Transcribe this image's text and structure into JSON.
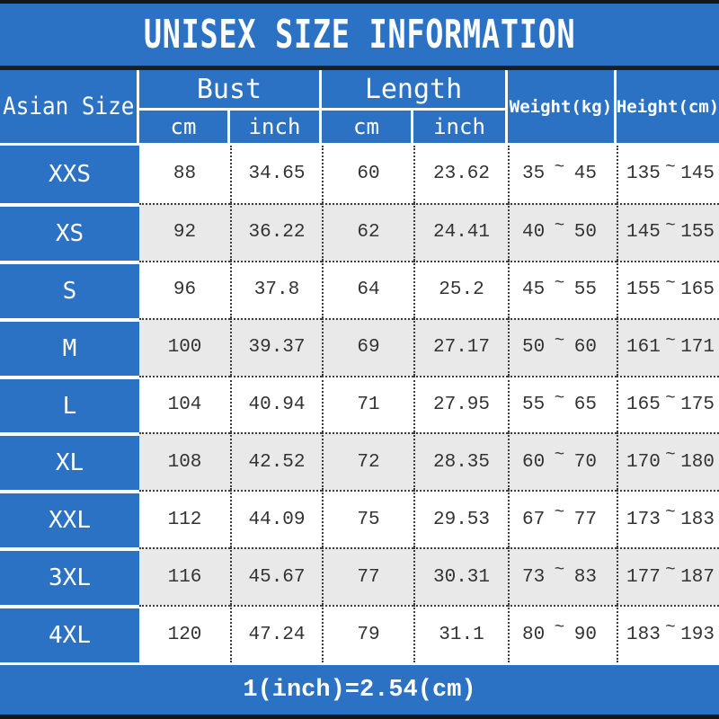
{
  "title": "UNISEX SIZE INFORMATION",
  "header": {
    "size_col": "Asian Size",
    "bust_group": "Bust",
    "length_group": "Length",
    "weight_col": "Weight(kg)",
    "height_col": "Height(cm)",
    "sub_cm": "cm",
    "sub_inch": "inch"
  },
  "labels": {
    "tilde": "~"
  },
  "footer": {
    "conversion_note": "1(inch)=2.54(cm)"
  },
  "colors": {
    "header_blue": "#2b72c4",
    "row_bg": "#ffffff",
    "row_alt_bg": "#e9e9e9",
    "text_dark": "#333333",
    "frame_black": "#161616",
    "header_text": "#ffffff"
  },
  "chart_data": {
    "type": "table",
    "title": "UNISEX SIZE INFORMATION",
    "column_groups": [
      "Asian Size",
      "Bust",
      "Length",
      "Weight(kg)",
      "Height(cm)"
    ],
    "columns": [
      "Asian Size",
      "Bust cm",
      "Bust inch",
      "Length cm",
      "Length inch",
      "Weight(kg)",
      "Height(cm)"
    ],
    "rows": [
      {
        "size": "XXS",
        "bust_cm": "88",
        "bust_inch": "34.65",
        "length_cm": "60",
        "length_inch": "23.62",
        "weight_min": "35",
        "weight_max": "45",
        "height_min": "135",
        "height_max": "145"
      },
      {
        "size": "XS",
        "bust_cm": "92",
        "bust_inch": "36.22",
        "length_cm": "62",
        "length_inch": "24.41",
        "weight_min": "40",
        "weight_max": "50",
        "height_min": "145",
        "height_max": "155"
      },
      {
        "size": "S",
        "bust_cm": "96",
        "bust_inch": "37.8",
        "length_cm": "64",
        "length_inch": "25.2",
        "weight_min": "45",
        "weight_max": "55",
        "height_min": "155",
        "height_max": "165"
      },
      {
        "size": "M",
        "bust_cm": "100",
        "bust_inch": "39.37",
        "length_cm": "69",
        "length_inch": "27.17",
        "weight_min": "50",
        "weight_max": "60",
        "height_min": "161",
        "height_max": "171"
      },
      {
        "size": "L",
        "bust_cm": "104",
        "bust_inch": "40.94",
        "length_cm": "71",
        "length_inch": "27.95",
        "weight_min": "55",
        "weight_max": "65",
        "height_min": "165",
        "height_max": "175"
      },
      {
        "size": "XL",
        "bust_cm": "108",
        "bust_inch": "42.52",
        "length_cm": "72",
        "length_inch": "28.35",
        "weight_min": "60",
        "weight_max": "70",
        "height_min": "170",
        "height_max": "180"
      },
      {
        "size": "XXL",
        "bust_cm": "112",
        "bust_inch": "44.09",
        "length_cm": "75",
        "length_inch": "29.53",
        "weight_min": "67",
        "weight_max": "77",
        "height_min": "173",
        "height_max": "183"
      },
      {
        "size": "3XL",
        "bust_cm": "116",
        "bust_inch": "45.67",
        "length_cm": "77",
        "length_inch": "30.31",
        "weight_min": "73",
        "weight_max": "83",
        "height_min": "177",
        "height_max": "187"
      },
      {
        "size": "4XL",
        "bust_cm": "120",
        "bust_inch": "47.24",
        "length_cm": "79",
        "length_inch": "31.1",
        "weight_min": "80",
        "weight_max": "90",
        "height_min": "183",
        "height_max": "193"
      }
    ]
  }
}
